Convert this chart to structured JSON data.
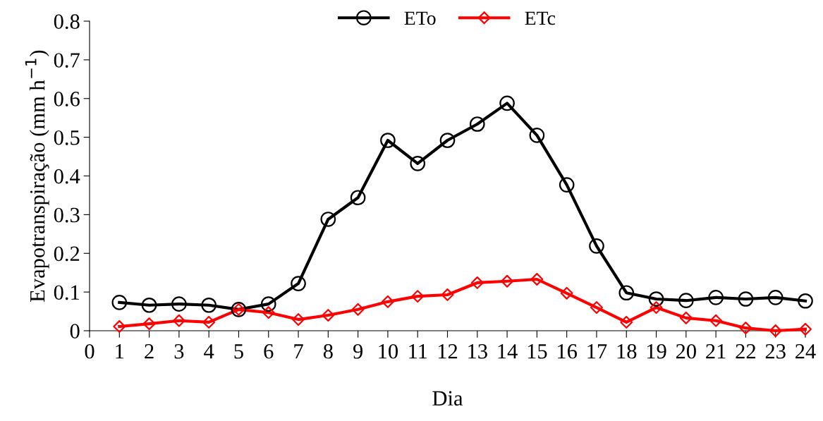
{
  "chart_data": {
    "type": "line",
    "xlabel": "Dia",
    "ylabel": "Evapotranspiração (mm h$^{−1}$)",
    "x": [
      1,
      2,
      3,
      4,
      5,
      6,
      7,
      8,
      9,
      10,
      11,
      12,
      13,
      14,
      15,
      16,
      17,
      18,
      19,
      20,
      21,
      22,
      23,
      24
    ],
    "series": [
      {
        "name": "ETo",
        "color": "#000000",
        "marker": "circle",
        "values": [
          0.073,
          0.066,
          0.069,
          0.066,
          0.055,
          0.069,
          0.122,
          0.288,
          0.344,
          0.492,
          0.432,
          0.492,
          0.534,
          0.588,
          0.505,
          0.377,
          0.219,
          0.098,
          0.082,
          0.078,
          0.086,
          0.082,
          0.086,
          0.077
        ]
      },
      {
        "name": "ETc",
        "color": "#ff0000",
        "marker": "diamond",
        "values": [
          0.011,
          0.018,
          0.026,
          0.022,
          0.055,
          0.047,
          0.029,
          0.04,
          0.055,
          0.075,
          0.089,
          0.093,
          0.124,
          0.128,
          0.133,
          0.097,
          0.06,
          0.022,
          0.06,
          0.033,
          0.026,
          0.007,
          0.0,
          0.004
        ]
      }
    ],
    "xlim": [
      0,
      24
    ],
    "xticks": [
      0,
      1,
      2,
      3,
      4,
      5,
      6,
      7,
      8,
      9,
      10,
      11,
      12,
      13,
      14,
      15,
      16,
      17,
      18,
      19,
      20,
      21,
      22,
      23,
      24
    ],
    "ylim": [
      0,
      0.8
    ],
    "yticks": [
      0,
      0.1,
      0.2,
      0.3,
      0.4,
      0.5,
      0.6,
      0.7,
      0.8
    ],
    "grid": false,
    "legend": "top",
    "line_style": "solid"
  }
}
